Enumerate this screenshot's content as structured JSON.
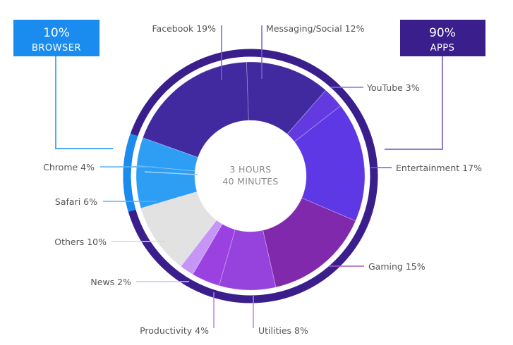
{
  "chart_data": {
    "type": "pie",
    "subtype": "donut",
    "title": "",
    "center_label": [
      "3 HOURS",
      "40 MINUTES"
    ],
    "total_time": "3 HOURS 40 MINUTES",
    "groups": [
      {
        "name": "BROWSER",
        "value": 10,
        "label": "10%",
        "color": "#1a8cf0",
        "members": [
          "Chrome",
          "Safari"
        ]
      },
      {
        "name": "APPS",
        "value": 90,
        "label": "90%",
        "color": "#3a1e8c",
        "members": [
          "Messaging/Social",
          "YouTube",
          "Entertainment",
          "Gaming",
          "Utilities",
          "Productivity",
          "News",
          "Others",
          "Facebook"
        ]
      }
    ],
    "categories": [
      "Messaging/Social",
      "YouTube",
      "Entertainment",
      "Gaming",
      "Utilities",
      "Productivity",
      "News",
      "Others",
      "Safari",
      "Chrome",
      "Facebook"
    ],
    "values": [
      12,
      3,
      17,
      15,
      8,
      4,
      2,
      10,
      6,
      4,
      19
    ],
    "colors": [
      "#41299f",
      "#6339e0",
      "#5f38e6",
      "#8129ad",
      "#9643de",
      "#9b41e2",
      "#c596f5",
      "#e2e2e2",
      "#2e9ef5",
      "#2e9ef5",
      "#41299f"
    ],
    "start_angle_deg": -2,
    "direction": "clockwise",
    "legend": "callout labels"
  },
  "labels": {
    "facebook": "Facebook 19%",
    "messaging": "Messaging/Social 12%",
    "youtube": "YouTube 3%",
    "entertainment": "Entertainment 17%",
    "gaming": "Gaming 15%",
    "utilities": "Utilities 8%",
    "productivity": "Productivity 4%",
    "news": "News 2%",
    "others": "Others 10%",
    "safari": "Safari 6%",
    "chrome": "Chrome 4%"
  },
  "boxes": {
    "browser": {
      "percent": "10%",
      "name": "BROWSER",
      "color": "#1a8cf0"
    },
    "apps": {
      "percent": "90%",
      "name": "APPS",
      "color": "#3a1e8c"
    }
  },
  "center": {
    "line1": "3 HOURS",
    "line2": "40 MINUTES"
  }
}
